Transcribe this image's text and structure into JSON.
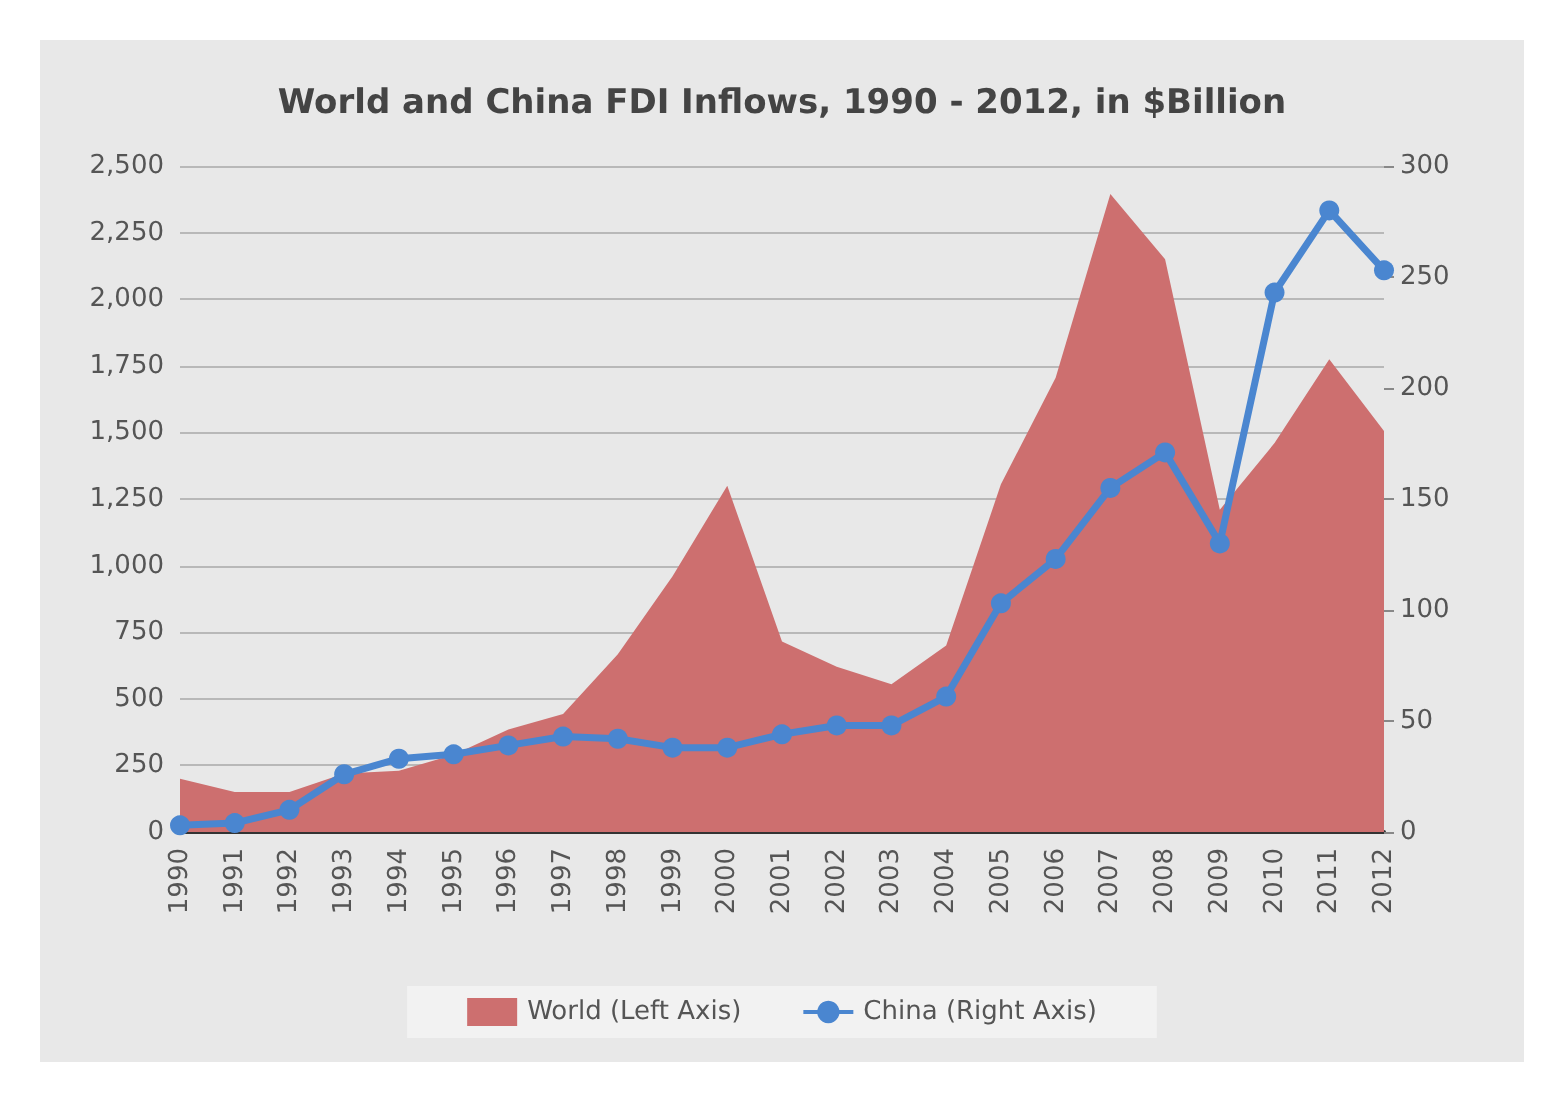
{
  "chart_data": {
    "type": "area",
    "title": "World and China FDI Inflows, 1990 - 2012, in $Billion",
    "categories": [
      "1990",
      "1991",
      "1992",
      "1993",
      "1994",
      "1995",
      "1996",
      "1997",
      "1998",
      "1999",
      "2000",
      "2001",
      "2002",
      "2003",
      "2004",
      "2005",
      "2006",
      "2007",
      "2008",
      "2009",
      "2010",
      "2011",
      "2012"
    ],
    "series": [
      {
        "name": "World (Left Axis)",
        "color": "#cd6f6f",
        "values": [
          200,
          150,
          150,
          220,
          230,
          290,
          385,
          443,
          667,
          960,
          1300,
          715,
          620,
          555,
          700,
          1305,
          1705,
          2395,
          2150,
          1210,
          1460,
          1775,
          1505
        ]
      },
      {
        "name": "China (Right Axis)",
        "type": "line",
        "axis": "y2",
        "marker": "circle",
        "color": "#4a86d0",
        "values": [
          3,
          4,
          10,
          26,
          33,
          35,
          39,
          43,
          42,
          38,
          38,
          44,
          48,
          48,
          61,
          103,
          123,
          155,
          171,
          130,
          243,
          280,
          253
        ]
      }
    ],
    "ylim": [
      0,
      2500
    ],
    "yticks": [
      {
        "value": 0,
        "label": "0"
      },
      {
        "value": 250,
        "label": "250"
      },
      {
        "value": 500,
        "label": "500"
      },
      {
        "value": 750,
        "label": "750"
      },
      {
        "value": 1000,
        "label": "1,000"
      },
      {
        "value": 1250,
        "label": "1,250"
      },
      {
        "value": 1500,
        "label": "1,500"
      },
      {
        "value": 1750,
        "label": "1,750"
      },
      {
        "value": 2000,
        "label": "2,000"
      },
      {
        "value": 2250,
        "label": "2,250"
      },
      {
        "value": 2500,
        "label": "2,500"
      }
    ],
    "y2lim": [
      0,
      300
    ],
    "y2ticks": [
      0,
      50,
      100,
      150,
      200,
      250,
      300
    ],
    "grid": "y",
    "legend": "bottom",
    "line_style": "solid"
  }
}
